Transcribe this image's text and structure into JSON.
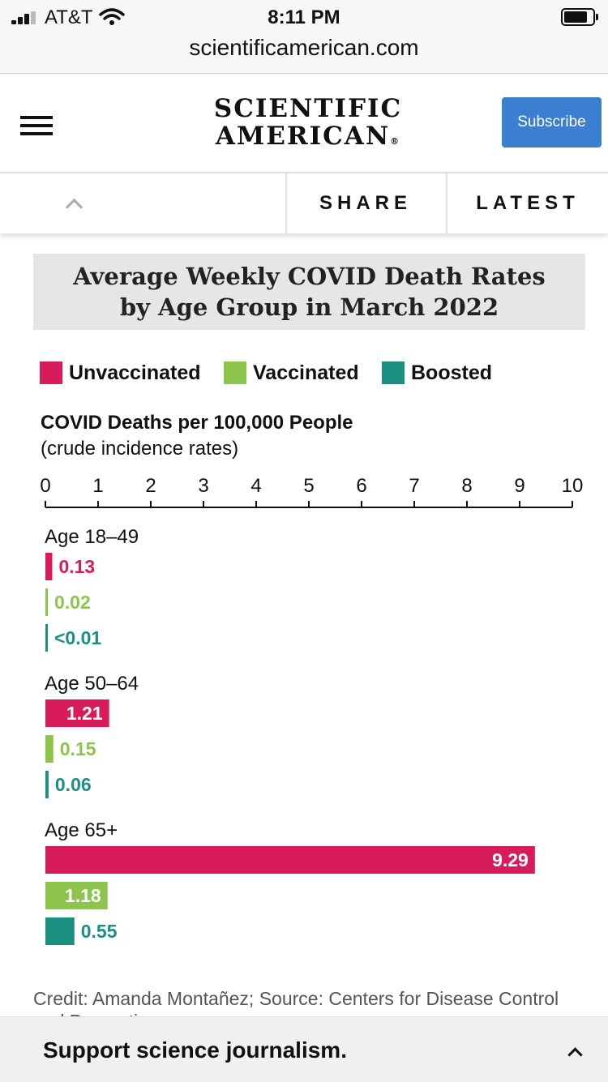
{
  "status_bar": {
    "carrier": "AT&T",
    "time": "8:11 PM"
  },
  "browser": {
    "url": "scientificamerican.com"
  },
  "header": {
    "logo_line1": "SCIENTIFIC",
    "logo_line2": "AMERICAN",
    "logo_mark": "®",
    "subscribe_label": "Subscribe"
  },
  "nav": {
    "share_label": "SHARE",
    "latest_label": "LATEST"
  },
  "chart": {
    "title_line1": "Average Weekly COVID Death Rates",
    "title_line2": "by Age Group in March 2022",
    "axis_title": "COVID Deaths per 100,000 People",
    "axis_subtitle": "(crude incidence rates)"
  },
  "chart_data": {
    "type": "bar",
    "orientation": "horizontal",
    "title": "Average Weekly COVID Death Rates by Age Group in March 2022",
    "xlabel": "COVID Deaths per 100,000 People (crude incidence rates)",
    "xlim": [
      0,
      10
    ],
    "ticks": [
      "0",
      "1",
      "2",
      "3",
      "4",
      "5",
      "6",
      "7",
      "8",
      "9",
      "10"
    ],
    "legend": [
      "Unvaccinated",
      "Vaccinated",
      "Boosted"
    ],
    "colors": [
      "#d81b5a",
      "#8dc44c",
      "#1b8f80"
    ],
    "groups": [
      {
        "label": "Age 18–49",
        "values": [
          0.13,
          0.02,
          0.005
        ],
        "labels": [
          "0.13",
          "0.02",
          "<0.01"
        ]
      },
      {
        "label": "Age 50–64",
        "values": [
          1.21,
          0.15,
          0.06
        ],
        "labels": [
          "1.21",
          "0.15",
          "0.06"
        ]
      },
      {
        "label": "Age 65+",
        "values": [
          9.29,
          1.18,
          0.55
        ],
        "labels": [
          "9.29",
          "1.18",
          "0.55"
        ]
      }
    ]
  },
  "credit": "Credit: Amanda Montañez; Source: Centers for Disease Control and Prevention",
  "support": {
    "text": "Support science journalism."
  }
}
